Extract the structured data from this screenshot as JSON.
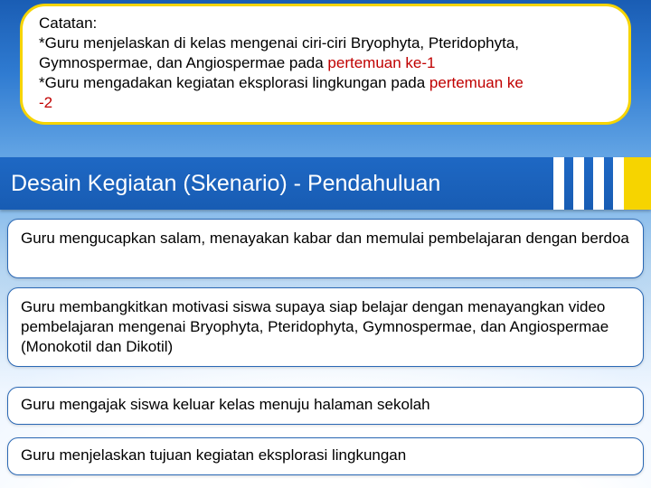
{
  "colors": {
    "yellow_border": "#f6d400",
    "blue_header_top": "#1e68c4",
    "blue_header_bottom": "#185cb3",
    "card_border": "#2a68b5",
    "red_text": "#c00000",
    "white": "#ffffff"
  },
  "note": {
    "heading": "Catatan:",
    "line1_a": "*Guru menjelaskan di kelas mengenai ciri-ciri Bryophyta, Pteridophyta,",
    "line2_a": " Gymnospermae, dan Angiospermae pada ",
    "line2_b_red": "pertemuan ke-1",
    "line3_a": "*Guru mengadakan kegiatan eksplorasi lingkungan pada ",
    "line3_b_red": "pertemuan ke",
    "line4_red": "-2"
  },
  "section_header": "Desain Kegiatan (Skenario) - Pendahuluan",
  "cards": {
    "c1": "Guru mengucapkan salam, menayakan kabar dan memulai pembelajaran dengan berdoa",
    "c2": "Guru membangkitkan motivasi siswa supaya siap belajar dengan menayangkan video pembelajaran mengenai Bryophyta, Pteridophyta, Gymnospermae, dan Angiospermae (Monokotil dan Dikotil)",
    "c3": "Guru mengajak siswa keluar kelas menuju halaman sekolah",
    "c4": "Guru menjelaskan tujuan kegiatan eksplorasi lingkungan"
  }
}
